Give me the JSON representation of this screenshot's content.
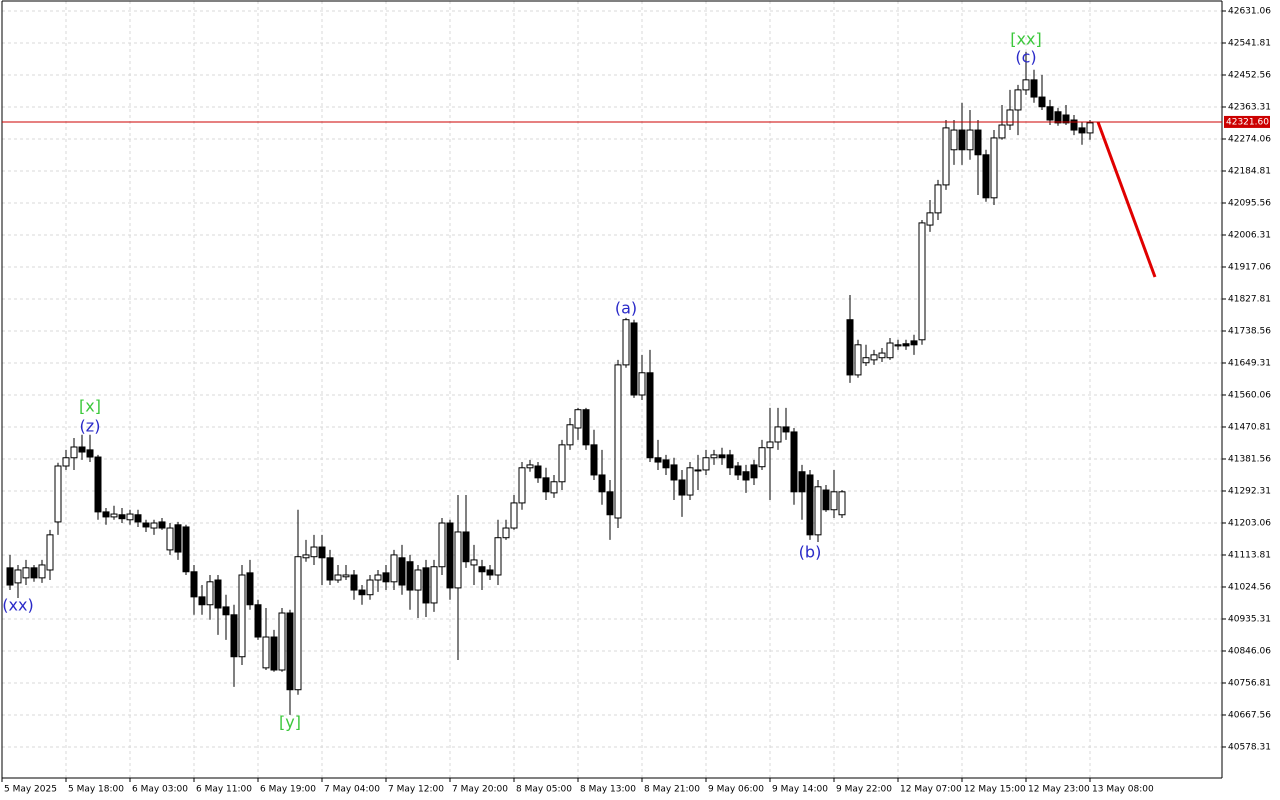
{
  "chart_data": {
    "type": "candlestick",
    "categories": [
      "5 May 2025",
      null,
      null,
      null,
      null,
      null,
      null,
      null,
      "5 May 18:00",
      null,
      null,
      null,
      null,
      null,
      null,
      null,
      "6 May 03:00",
      null,
      null,
      null,
      null,
      null,
      null,
      null,
      "6 May 11:00",
      null,
      null,
      null,
      null,
      null,
      null,
      null,
      "6 May 19:00",
      null,
      null,
      null,
      null,
      null,
      null,
      null,
      "7 May 04:00",
      null,
      null,
      null,
      null,
      null,
      null,
      null,
      "7 May 12:00",
      null,
      null,
      null,
      null,
      null,
      null,
      null,
      "7 May 20:00",
      null,
      null,
      null,
      null,
      null,
      null,
      null,
      "8 May 05:00",
      null,
      null,
      null,
      null,
      null,
      null,
      null,
      "8 May 13:00",
      null,
      null,
      null,
      null,
      null,
      null,
      null,
      "8 May 21:00",
      null,
      null,
      null,
      null,
      null,
      null,
      null,
      "9 May 06:00",
      null,
      null,
      null,
      null,
      null,
      null,
      null,
      "9 May 14:00",
      null,
      null,
      null,
      null,
      null,
      null,
      null,
      "9 May 22:00",
      null,
      null,
      null,
      null,
      null,
      null,
      null,
      "12 May 07:00",
      null,
      null,
      null,
      null,
      null,
      null,
      null,
      "12 May 15:00",
      null,
      null,
      null,
      null,
      null,
      null,
      null,
      "12 May 23:00",
      null,
      null,
      null,
      null,
      null,
      null,
      null,
      "13 May 08:00"
    ],
    "open": [
      null,
      41078,
      41036,
      41050,
      41078,
      41050,
      41072,
      41206,
      41362,
      41385,
      41415,
      41407,
      41387,
      41234,
      41220,
      41226,
      41212,
      41226,
      41203,
      41189,
      41206,
      41128,
      41198,
      41192,
      41067,
      40997,
      40975,
      41044,
      40969,
      40947,
      40830,
      41064,
      40975,
      40799,
      40885,
      40793,
      40952,
      40738,
      41106,
      41109,
      41136,
      41106,
      41044,
      41053,
      41058,
      41016,
      41003,
      41044,
      41064,
      41039,
      41106,
      41095,
      41016,
      41078,
      40980,
      41081,
      41203,
      41022,
      41178,
      41086,
      41081,
      41072,
      41058,
      41162,
      41189,
      41259,
      41357,
      41362,
      41329,
      41287,
      41318,
      41421,
      41468,
      41519,
      41421,
      41337,
      41290,
      41217,
      41644,
      41761,
      41560,
      41622,
      41385,
      41379,
      41365,
      41323,
      41281,
      41351,
      41351,
      41385,
      41393,
      41393,
      41362,
      41346,
      41365,
      41360,
      41413,
      41429,
      41471,
      41457,
      41346,
      41337,
      41170,
      41295,
      41240,
      41226,
      41770,
      41616,
      41650,
      41658,
      41664,
      41664,
      41697,
      41703,
      41711,
      41714,
      42034,
      42068,
      42146,
      42244,
      42299,
      42244,
      42299,
      42230,
      42110,
      42277,
      42313,
      42355,
      42411,
      42439,
      42391,
      42364,
      42350,
      42341,
      42327,
      42305,
      42291
    ],
    "high": [
      null,
      41114,
      41086,
      41100,
      41086,
      41100,
      41184,
      41371,
      41407,
      41440,
      41449,
      41449,
      41393,
      41245,
      41251,
      41245,
      41240,
      41240,
      41212,
      41212,
      41217,
      41203,
      41206,
      41198,
      41086,
      41030,
      41058,
      41058,
      41003,
      40975,
      41086,
      41100,
      40989,
      40966,
      40905,
      40966,
      40961,
      41240,
      41156,
      41170,
      41170,
      41128,
      41086,
      41086,
      41072,
      41030,
      41058,
      41072,
      41086,
      41128,
      41142,
      41114,
      41086,
      41100,
      41100,
      41217,
      41212,
      41281,
      41281,
      41142,
      41100,
      41086,
      41212,
      41212,
      41281,
      41373,
      41379,
      41373,
      41357,
      41337,
      41435,
      41496,
      41524,
      41524,
      41463,
      41407,
      41323,
      41658,
      41775,
      41770,
      41672,
      41686,
      41435,
      41393,
      41385,
      41351,
      41373,
      41393,
      41407,
      41407,
      41413,
      41407,
      41373,
      41365,
      41379,
      41435,
      41524,
      41524,
      41524,
      41468,
      41365,
      41351,
      41323,
      41309,
      41351,
      41295,
      41839,
      41714,
      41700,
      41686,
      41691,
      41719,
      41714,
      41714,
      41728,
      42048,
      42104,
      42160,
      42327,
      42327,
      42375,
      42355,
      42327,
      42244,
      42299,
      42369,
      42411,
      42425,
      42517,
      42467,
      42453,
      42383,
      42361,
      42369,
      42341,
      42322,
      42327
    ],
    "low": [
      null,
      41016,
      40994,
      41030,
      41039,
      41036,
      41044,
      41170,
      41351,
      41351,
      41379,
      41373,
      41212,
      41198,
      41212,
      41203,
      41198,
      41192,
      41178,
      41170,
      41184,
      41114,
      41100,
      41058,
      40947,
      40947,
      40933,
      40891,
      40877,
      40746,
      40807,
      40961,
      40877,
      40793,
      40788,
      40788,
      40668,
      40724,
      41095,
      41086,
      41030,
      41030,
      41036,
      41044,
      40989,
      40975,
      40989,
      41011,
      41016,
      41016,
      41003,
      40961,
      40938,
      40941,
      40955,
      41058,
      40989,
      40821,
      41078,
      41030,
      41016,
      41044,
      41030,
      41156,
      41184,
      41240,
      41346,
      41315,
      41267,
      41273,
      41295,
      41407,
      41435,
      41407,
      41323,
      41254,
      41156,
      41189,
      41636,
      41552,
      41546,
      41373,
      41351,
      41337,
      41267,
      41220,
      41267,
      41295,
      41337,
      41365,
      41365,
      41337,
      41323,
      41287,
      41309,
      41351,
      41267,
      41407,
      41435,
      41254,
      41212,
      41156,
      41150,
      41234,
      41217,
      41217,
      41594,
      41608,
      41641,
      41644,
      41652,
      41658,
      41686,
      41686,
      41672,
      41700,
      42015,
      42048,
      42132,
      42202,
      42202,
      42216,
      42118,
      42099,
      42090,
      42272,
      42299,
      42285,
      42397,
      42375,
      42355,
      42313,
      42311,
      42313,
      42285,
      42258,
      42272
    ],
    "close": [
      null,
      41030,
      41072,
      41078,
      41050,
      41086,
      41170,
      41362,
      41385,
      41415,
      41401,
      41387,
      41234,
      41220,
      41228,
      41215,
      41228,
      41206,
      41192,
      41203,
      41189,
      41189,
      41122,
      41067,
      40997,
      40975,
      41039,
      40966,
      40947,
      40830,
      41058,
      40975,
      40885,
      40885,
      40793,
      40952,
      40738,
      41109,
      41114,
      41136,
      41106,
      41044,
      41058,
      41058,
      41016,
      41003,
      41044,
      41058,
      41039,
      41114,
      41030,
      41016,
      41072,
      40980,
      41081,
      41203,
      41022,
      41178,
      41095,
      41100,
      41067,
      41058,
      41162,
      41189,
      41259,
      41357,
      41365,
      41329,
      41290,
      41318,
      41421,
      41477,
      41519,
      41421,
      41337,
      41290,
      41226,
      41644,
      41770,
      41560,
      41622,
      41385,
      41373,
      41357,
      41323,
      41281,
      41357,
      41351,
      41385,
      41393,
      41385,
      41357,
      41337,
      41323,
      41329,
      41413,
      41429,
      41471,
      41457,
      41290,
      41290,
      41170,
      41304,
      41240,
      41290,
      41290,
      41616,
      41700,
      41664,
      41672,
      41677,
      41705,
      41700,
      41697,
      41700,
      42040,
      42068,
      42146,
      42305,
      42299,
      42244,
      42299,
      42230,
      42110,
      42277,
      42313,
      42355,
      42411,
      42439,
      42391,
      42364,
      42327,
      42319,
      42319,
      42299,
      42291,
      42319
    ],
    "ylim": [
      40491.8,
      42661.7
    ],
    "yticks": [
      40578.31,
      40667.56,
      40756.81,
      40846.06,
      40935.31,
      41024.56,
      41113.81,
      41203.06,
      41292.31,
      41381.56,
      41470.81,
      41560.06,
      41649.31,
      41738.56,
      41827.81,
      41917.06,
      42006.31,
      42095.56,
      42184.81,
      42274.06,
      42363.31,
      42452.56,
      42541.81,
      42631.06
    ],
    "grid": true,
    "up_color": "#ffffff",
    "down_color": "#000000",
    "price_line": {
      "value": 42321.6,
      "label": "42321.60",
      "color": "#cc0000"
    },
    "annotations": [
      {
        "text": "(xx)",
        "color": "#2929c8"
      },
      {
        "text": "[x]",
        "color": "#3cc83c"
      },
      {
        "text": "(z)",
        "color": "#2929c8"
      },
      {
        "text": "[y]",
        "color": "#3cc83c"
      },
      {
        "text": "(a)",
        "color": "#2929c8"
      },
      {
        "text": "(b)",
        "color": "#2929c8"
      },
      {
        "text": "[xx]",
        "color": "#3cc83c"
      },
      {
        "text": "(c)",
        "color": "#2929c8"
      }
    ]
  }
}
